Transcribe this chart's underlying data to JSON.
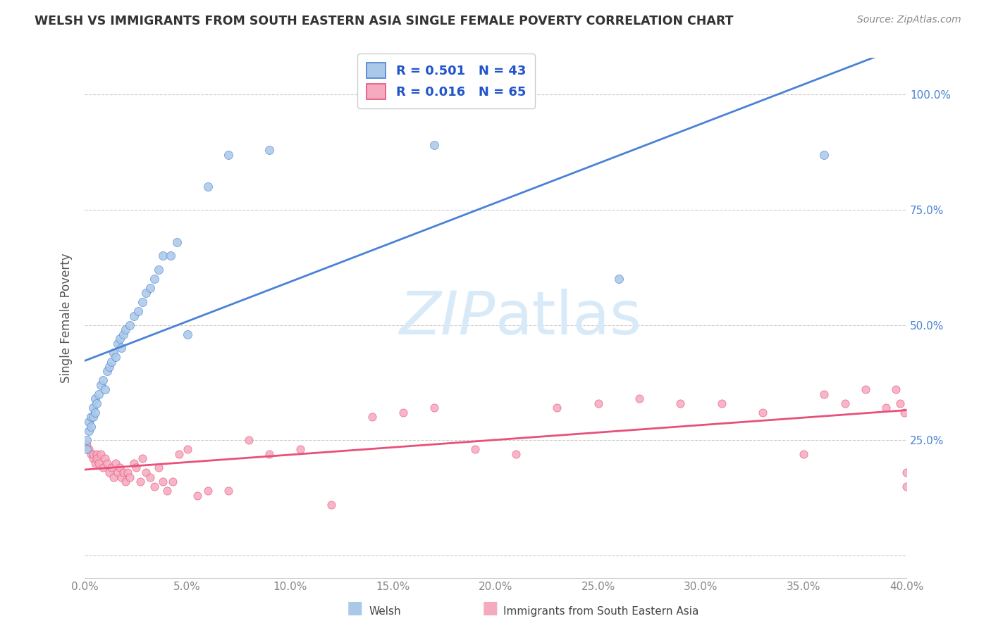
{
  "title": "WELSH VS IMMIGRANTS FROM SOUTH EASTERN ASIA SINGLE FEMALE POVERTY CORRELATION CHART",
  "source": "Source: ZipAtlas.com",
  "ylabel": "Single Female Poverty",
  "ytick_labels": [
    "25.0%",
    "50.0%",
    "75.0%",
    "100.0%"
  ],
  "ytick_values": [
    0.25,
    0.5,
    0.75,
    1.0
  ],
  "color_welsh": "#aac8e8",
  "color_immigrants": "#f5aabf",
  "color_welsh_line": "#4a82d4",
  "color_immigrants_line": "#e8507a",
  "color_r_label": "#2255cc",
  "watermark_color": "#d8eaf8",
  "xlim": [
    0.0,
    0.4
  ],
  "ylim": [
    -0.05,
    1.08
  ],
  "welsh_x": [
    0.001,
    0.001,
    0.002,
    0.002,
    0.003,
    0.003,
    0.004,
    0.004,
    0.005,
    0.005,
    0.006,
    0.007,
    0.008,
    0.009,
    0.01,
    0.011,
    0.012,
    0.013,
    0.014,
    0.015,
    0.016,
    0.017,
    0.018,
    0.019,
    0.02,
    0.022,
    0.024,
    0.026,
    0.028,
    0.03,
    0.032,
    0.034,
    0.036,
    0.038,
    0.042,
    0.045,
    0.05,
    0.06,
    0.07,
    0.09,
    0.17,
    0.26,
    0.36
  ],
  "welsh_y": [
    0.23,
    0.25,
    0.27,
    0.29,
    0.28,
    0.3,
    0.3,
    0.32,
    0.31,
    0.34,
    0.33,
    0.35,
    0.37,
    0.38,
    0.36,
    0.4,
    0.41,
    0.42,
    0.44,
    0.43,
    0.46,
    0.47,
    0.45,
    0.48,
    0.49,
    0.5,
    0.52,
    0.53,
    0.55,
    0.57,
    0.58,
    0.6,
    0.62,
    0.65,
    0.65,
    0.68,
    0.48,
    0.8,
    0.87,
    0.88,
    0.89,
    0.6,
    0.87
  ],
  "immigrants_x": [
    0.001,
    0.002,
    0.003,
    0.004,
    0.004,
    0.005,
    0.006,
    0.006,
    0.007,
    0.008,
    0.009,
    0.01,
    0.011,
    0.012,
    0.013,
    0.014,
    0.015,
    0.016,
    0.017,
    0.018,
    0.019,
    0.02,
    0.021,
    0.022,
    0.024,
    0.025,
    0.027,
    0.028,
    0.03,
    0.032,
    0.034,
    0.036,
    0.038,
    0.04,
    0.043,
    0.046,
    0.05,
    0.055,
    0.06,
    0.07,
    0.08,
    0.09,
    0.105,
    0.12,
    0.14,
    0.155,
    0.17,
    0.19,
    0.21,
    0.23,
    0.25,
    0.27,
    0.29,
    0.31,
    0.33,
    0.35,
    0.36,
    0.37,
    0.38,
    0.39,
    0.395,
    0.397,
    0.399,
    0.4,
    0.4
  ],
  "immigrants_y": [
    0.24,
    0.23,
    0.22,
    0.21,
    0.22,
    0.2,
    0.22,
    0.21,
    0.2,
    0.22,
    0.19,
    0.21,
    0.2,
    0.18,
    0.19,
    0.17,
    0.2,
    0.18,
    0.19,
    0.17,
    0.18,
    0.16,
    0.18,
    0.17,
    0.2,
    0.19,
    0.16,
    0.21,
    0.18,
    0.17,
    0.15,
    0.19,
    0.16,
    0.14,
    0.16,
    0.22,
    0.23,
    0.13,
    0.14,
    0.14,
    0.25,
    0.22,
    0.23,
    0.11,
    0.3,
    0.31,
    0.32,
    0.23,
    0.22,
    0.32,
    0.33,
    0.34,
    0.33,
    0.33,
    0.31,
    0.22,
    0.35,
    0.33,
    0.36,
    0.32,
    0.36,
    0.33,
    0.31,
    0.15,
    0.18
  ]
}
